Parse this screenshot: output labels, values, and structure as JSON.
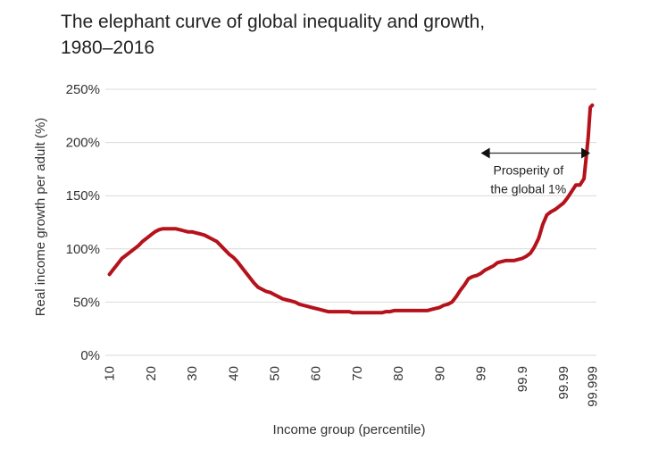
{
  "chart_data": {
    "type": "line",
    "title_lines": [
      "The elephant curve of global inequality and growth,",
      "1980–2016"
    ],
    "xlabel": "Income group (percentile)",
    "ylabel": "Real income growth per adult (%)",
    "ylim": [
      0,
      250
    ],
    "yticks": [
      0,
      50,
      100,
      150,
      200,
      250
    ],
    "ytick_labels": [
      "0%",
      "50%",
      "100%",
      "150%",
      "200%",
      "250%"
    ],
    "xticks": [
      10,
      20,
      30,
      40,
      50,
      60,
      70,
      80,
      90,
      99,
      99.9,
      99.99,
      99.999
    ],
    "xtick_positions": [
      10,
      20,
      30,
      40,
      50,
      60,
      70,
      80,
      90,
      100,
      110,
      120,
      127
    ],
    "xtick_labels": [
      "10",
      "20",
      "30",
      "40",
      "50",
      "60",
      "70",
      "80",
      "90",
      "99",
      "99.9",
      "99.99",
      "99.999"
    ],
    "xlim": [
      9,
      128
    ],
    "grid": "horizontal",
    "line_color": "#b5121b",
    "series": [
      {
        "x": [
          10,
          11,
          12,
          13,
          14,
          15,
          16,
          17,
          18,
          19,
          20,
          21,
          22,
          23,
          24,
          25,
          26,
          27,
          28,
          29,
          30,
          31,
          32,
          33,
          34,
          35,
          36,
          37,
          38,
          39,
          40,
          41,
          42,
          43,
          44,
          45,
          46,
          47,
          48,
          49,
          50,
          51,
          52,
          53,
          54,
          55,
          56,
          57,
          58,
          59,
          60,
          61,
          62,
          63,
          64,
          65,
          66,
          67,
          68,
          69,
          70,
          71,
          72,
          73,
          74,
          75,
          76,
          77,
          78,
          79,
          80,
          81,
          82,
          83,
          84,
          85,
          86,
          87,
          88,
          89,
          90,
          91,
          92,
          93,
          94,
          95,
          96,
          97,
          98,
          99,
          100,
          101,
          102,
          103,
          104,
          105,
          106,
          107,
          108,
          109,
          110,
          111,
          112,
          113,
          114,
          115,
          116,
          117,
          118,
          119,
          120,
          121,
          122,
          123,
          124,
          124.5,
          125,
          125.5,
          126,
          126.5,
          127
        ],
        "values": [
          76,
          81,
          86,
          91,
          94,
          97,
          100,
          103,
          107,
          110,
          113,
          116,
          118,
          119,
          119,
          119,
          119,
          118,
          117,
          116,
          116,
          115,
          114,
          113,
          111,
          109,
          107,
          103,
          99,
          95,
          92,
          88,
          83,
          78,
          73,
          68,
          64,
          62,
          60,
          59,
          57,
          55,
          53,
          52,
          51,
          50,
          48,
          47,
          46,
          45,
          44,
          43,
          42,
          41,
          41,
          41,
          41,
          41,
          41,
          40,
          40,
          40,
          40,
          40,
          40,
          40,
          40,
          41,
          41,
          42,
          42,
          42,
          42,
          42,
          42,
          42,
          42,
          42,
          43,
          44,
          45,
          47,
          48,
          50,
          55,
          61,
          66,
          72,
          74,
          75,
          77,
          80,
          82,
          84,
          87,
          88,
          89,
          89,
          89,
          90,
          91,
          93,
          96,
          102,
          110,
          123,
          132,
          135,
          137,
          140,
          143,
          148,
          154,
          160,
          160,
          163,
          166,
          185,
          205,
          233,
          235
        ]
      }
    ],
    "annotation": {
      "text_lines": [
        "Prosperity of",
        "the global 1%"
      ],
      "arrow_from_x": 100,
      "arrow_to_x": 126.5,
      "arrow_y": 190
    }
  }
}
